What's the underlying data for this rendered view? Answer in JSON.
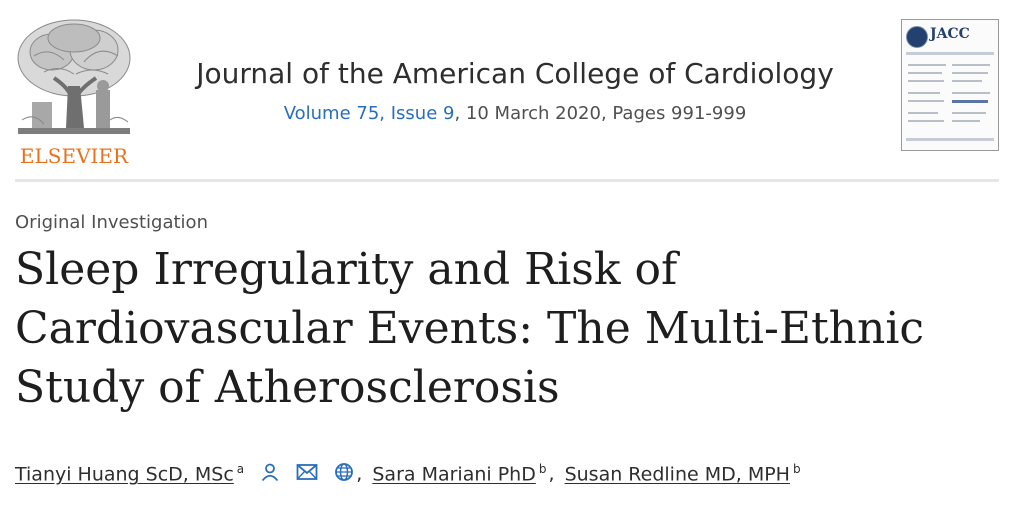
{
  "publisher": {
    "name": "ELSEVIER",
    "logo_icon": "elsevier-tree-icon",
    "color": "#e9711c"
  },
  "journal": {
    "title": "Journal of the American College of Cardiology",
    "volume_issue": "Volume 75, Issue 9",
    "date_pages": ", 10 March 2020, Pages 991-999",
    "link_color": "#2a6ebb"
  },
  "cover": {
    "brand": "JACC",
    "icon": "journal-cover-thumbnail"
  },
  "article": {
    "type": "Original Investigation",
    "title": "Sleep Irregularity and Risk of Cardiovascular Events: The Multi-Ethnic Study of Atherosclerosis"
  },
  "authors": [
    {
      "name": "Tianyi Huang ScD, MSc",
      "affiliation": "a",
      "icons": [
        "person-icon",
        "mail-icon",
        "globe-icon"
      ]
    },
    {
      "name": "Sara Mariani PhD",
      "affiliation": "b"
    },
    {
      "name": "Susan Redline MD, MPH",
      "affiliation": "b"
    }
  ],
  "separator": ","
}
